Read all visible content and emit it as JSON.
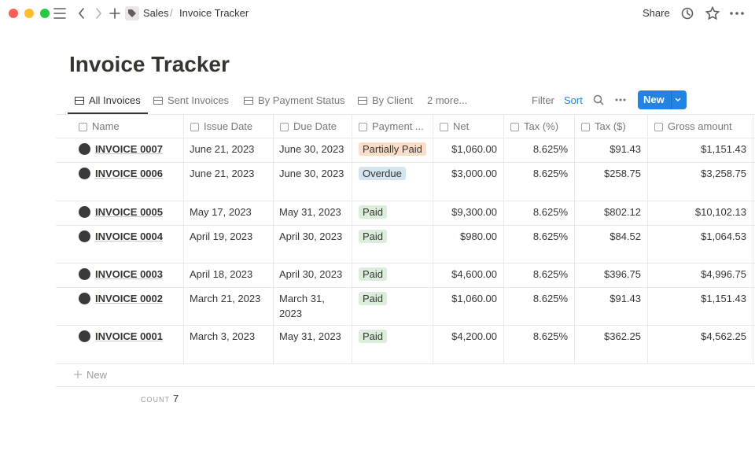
{
  "window": {
    "breadcrumb": [
      "Sales",
      "Invoice Tracker"
    ],
    "breadcrumb_separator": "/",
    "share": "Share"
  },
  "page": {
    "title": "Invoice Tracker"
  },
  "views": {
    "tabs": [
      "All Invoices",
      "Sent Invoices",
      "By Payment Status",
      "By Client",
      "2 more..."
    ],
    "active": 0,
    "filter": "Filter",
    "sort": "Sort",
    "new_button": "New"
  },
  "table": {
    "columns": [
      "Name",
      "Issue Date",
      "Due Date",
      "Payment ...",
      "Net",
      "Tax (%)",
      "Tax ($)",
      "Gross amount"
    ],
    "rows": [
      [
        "INVOICE 0007",
        "June 21, 2023",
        "June 30, 2023",
        {
          "text": "Partially Paid",
          "color": "#fadec9"
        },
        "$1,060.00",
        "8.625%",
        "$91.43",
        "$1,151.43"
      ],
      [
        "INVOICE 0006",
        "June 21, 2023",
        "June 30, 2023",
        {
          "text": "Overdue",
          "color": "#d3e5ef"
        },
        "$3,000.00",
        "8.625%",
        "$258.75",
        "$3,258.75"
      ],
      [
        "INVOICE 0005",
        "May 17, 2023",
        "May 31, 2023",
        {
          "text": "Paid",
          "color": "#dbeddb"
        },
        "$9,300.00",
        "8.625%",
        "$802.12",
        "$10,102.13"
      ],
      [
        "INVOICE 0004",
        "April 19, 2023",
        "April 30, 2023",
        {
          "text": "Paid",
          "color": "#dbeddb"
        },
        "$980.00",
        "8.625%",
        "$84.52",
        "$1,064.53"
      ],
      [
        "INVOICE 0003",
        "April 18, 2023",
        "April 30, 2023",
        {
          "text": "Paid",
          "color": "#dbeddb"
        },
        "$4,600.00",
        "8.625%",
        "$396.75",
        "$4,996.75"
      ],
      [
        "INVOICE 0002",
        "March 21, 2023",
        "March 31, 2023",
        {
          "text": "Paid",
          "color": "#dbeddb"
        },
        "$1,060.00",
        "8.625%",
        "$91.43",
        "$1,151.43"
      ],
      [
        "INVOICE 0001",
        "March 3, 2023",
        "May 31, 2023",
        {
          "text": "Paid",
          "color": "#dbeddb"
        },
        "$4,200.00",
        "8.625%",
        "$362.25",
        "$4,562.25"
      ]
    ],
    "add_row": "New",
    "footer": {
      "label": "COUNT",
      "value": 7
    }
  }
}
